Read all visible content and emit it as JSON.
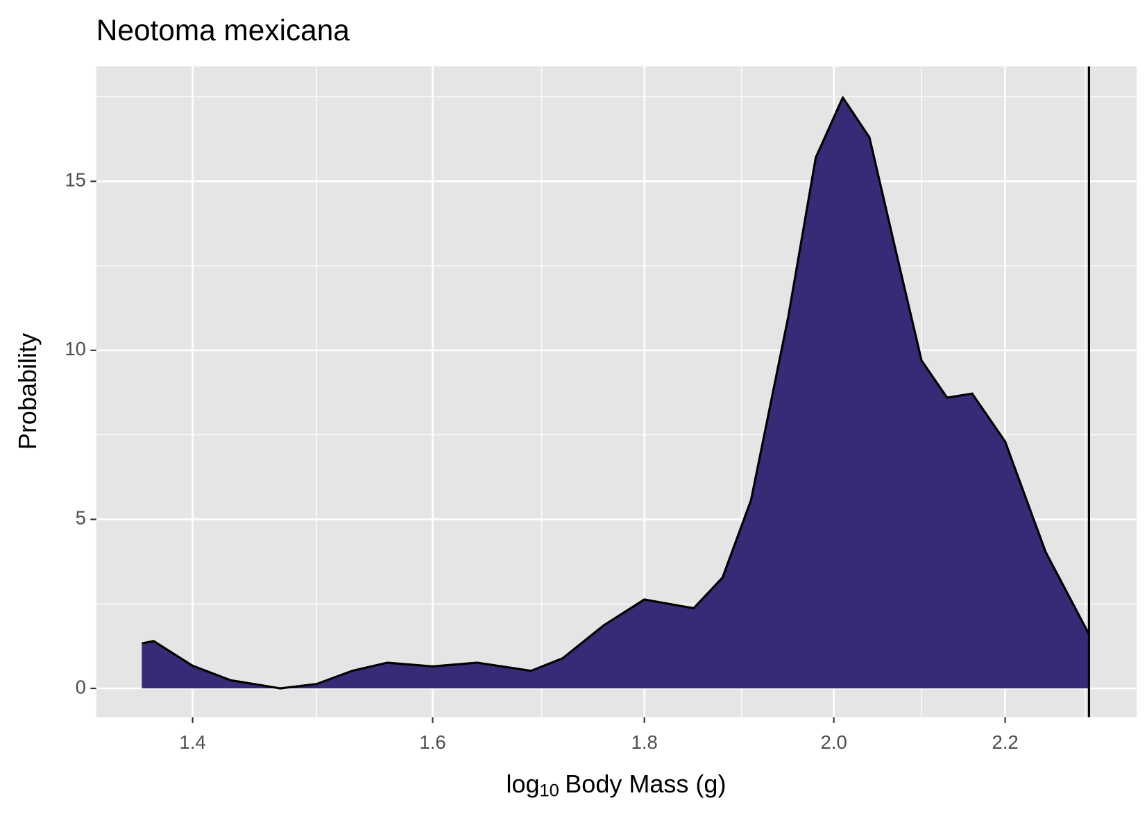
{
  "chart_data": {
    "type": "density",
    "title": "Neotoma mexicana",
    "x_label": {
      "base": "log",
      "subscript": "10",
      "text": "Body Mass (g)"
    },
    "y_label": "Probability",
    "x": [
      1.361,
      1.37,
      1.4,
      1.43,
      1.47,
      1.5,
      1.53,
      1.56,
      1.6,
      1.64,
      1.69,
      1.72,
      1.76,
      1.8,
      1.85,
      1.88,
      1.91,
      1.95,
      1.98,
      2.01,
      2.04,
      2.07,
      2.1,
      2.13,
      2.16,
      2.2,
      2.25,
      2.305
    ],
    "y": [
      1.33,
      1.4,
      0.67,
      0.24,
      0.0,
      0.13,
      0.52,
      0.76,
      0.65,
      0.76,
      0.52,
      0.89,
      1.87,
      2.63,
      2.37,
      3.28,
      5.57,
      11.0,
      15.7,
      17.48,
      16.3,
      12.96,
      9.7,
      8.6,
      8.72,
      7.3,
      4.04,
      1.6
    ],
    "color": "#372b77",
    "vline": 2.305,
    "x_log_scale": true,
    "xlim": [
      1.327,
      2.367
    ],
    "ylim": [
      -0.85,
      18.4
    ],
    "xticks": [
      1.4,
      1.6,
      1.8,
      {
        "value": 2,
        "label": "2.0"
      },
      2.2
    ],
    "yticks": [
      0,
      5,
      10,
      15
    ],
    "grid": true
  }
}
